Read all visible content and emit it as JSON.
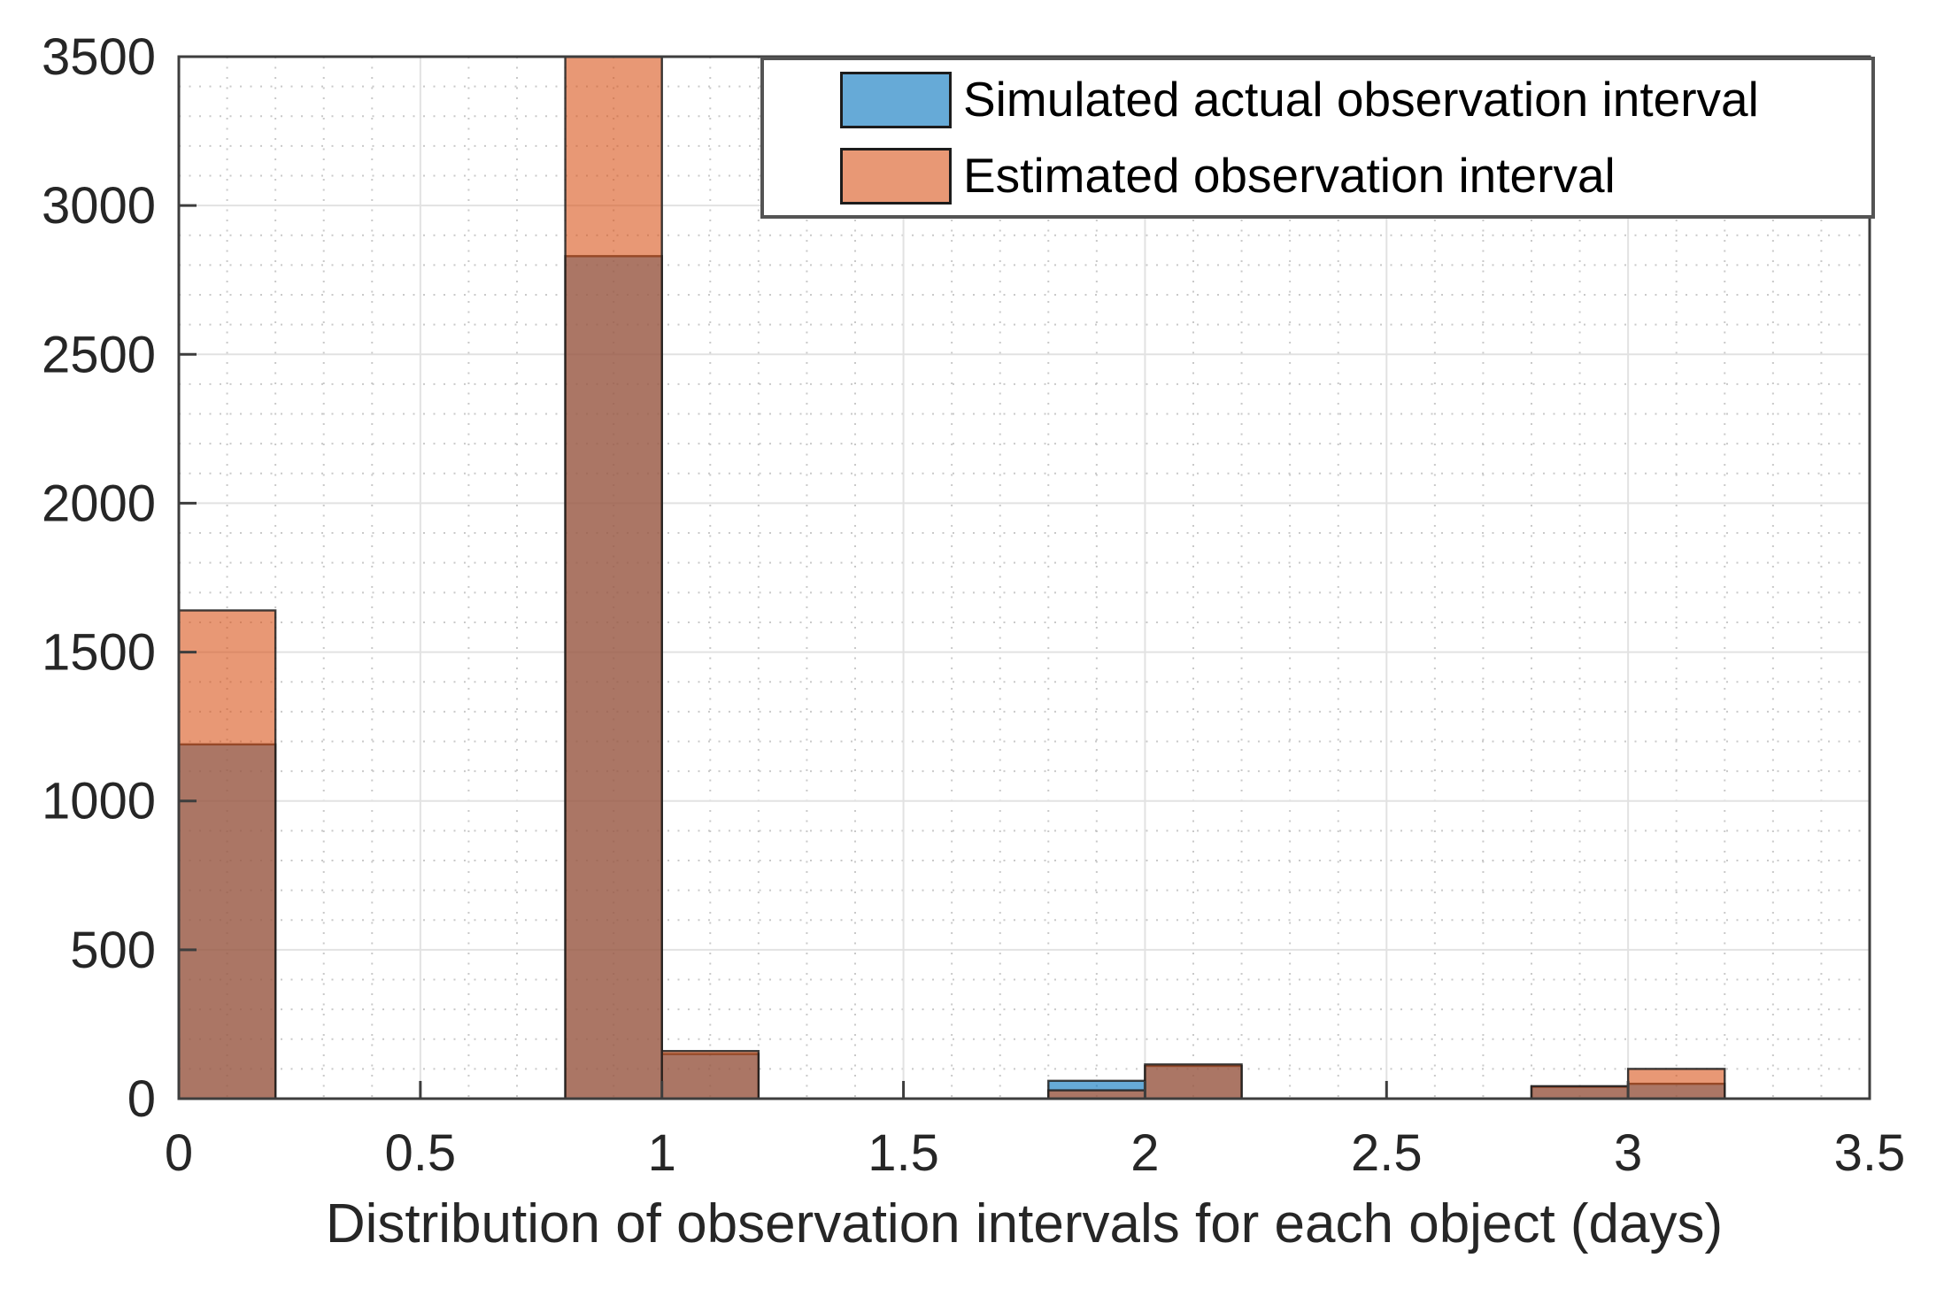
{
  "figure": {
    "legend": {
      "position": "northeast",
      "items": [
        {
          "label": "Simulated actual observation interval",
          "swatch_color": "#66AAD7"
        },
        {
          "label": "Estimated observation interval",
          "swatch_color": "#E89875"
        }
      ]
    }
  },
  "chart_data": {
    "type": "bar",
    "subtype": "overlaid-histogram",
    "xlabel": "Distribution of observation intervals for each object (days)",
    "ylabel": "",
    "title": "",
    "xlim": [
      0,
      3.5
    ],
    "ylim": [
      0,
      3500
    ],
    "xticks": [
      0,
      0.5,
      1,
      1.5,
      2,
      2.5,
      3,
      3.5
    ],
    "yticks": [
      0,
      500,
      1000,
      1500,
      2000,
      2500,
      3000,
      3500
    ],
    "bin_width": 0.2,
    "grid": {
      "major": "solid",
      "minor": "dotted",
      "minor_step_x": 0.1,
      "minor_step_y": 100
    },
    "legend_position": "northeast",
    "series": [
      {
        "name": "Simulated actual observation interval",
        "color": "#0072BD",
        "face_alpha": 0.6,
        "bins": [
          {
            "start": 0.0,
            "count": 1190
          },
          {
            "start": 0.8,
            "count": 2830
          },
          {
            "start": 1.0,
            "count": 150
          },
          {
            "start": 1.8,
            "count": 60
          },
          {
            "start": 2.0,
            "count": 110
          },
          {
            "start": 2.8,
            "count": 40
          },
          {
            "start": 3.0,
            "count": 50
          }
        ]
      },
      {
        "name": "Estimated observation interval",
        "color": "#D95319",
        "face_alpha": 0.6,
        "bins": [
          {
            "start": 0.0,
            "count": 1640
          },
          {
            "start": 0.8,
            "count": 3500,
            "clipped": true
          },
          {
            "start": 1.0,
            "count": 160
          },
          {
            "start": 1.8,
            "count": 28
          },
          {
            "start": 2.0,
            "count": 115
          },
          {
            "start": 2.8,
            "count": 42
          },
          {
            "start": 3.0,
            "count": 100
          }
        ]
      }
    ]
  }
}
